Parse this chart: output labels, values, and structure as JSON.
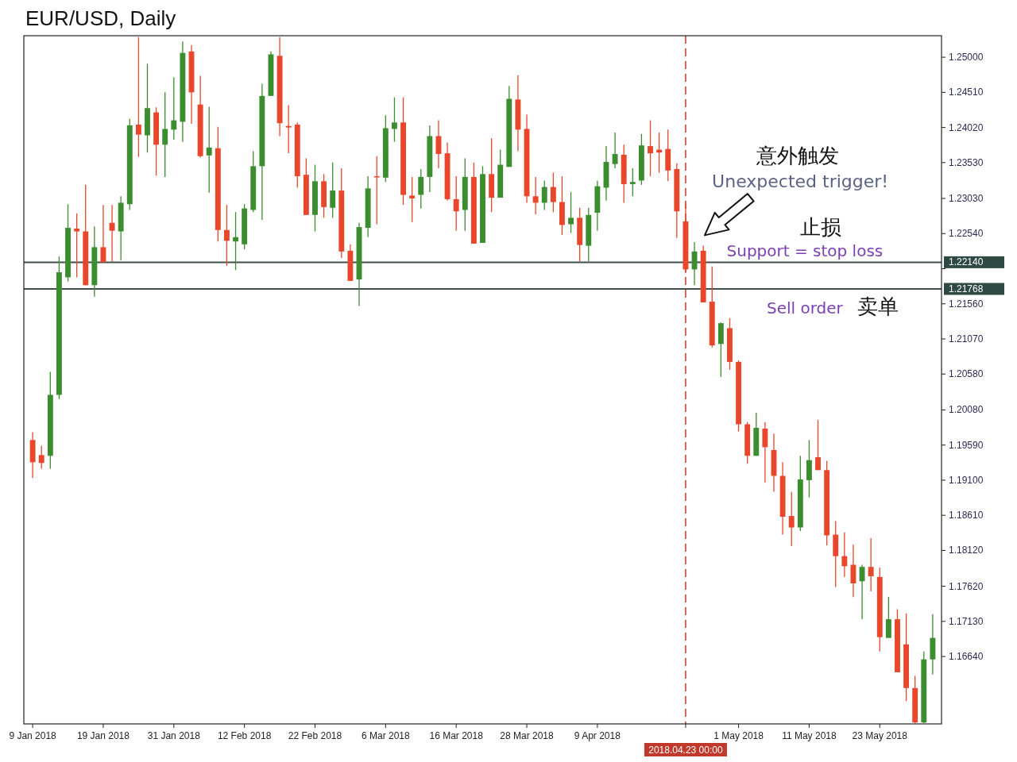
{
  "chart_data": {
    "type": "candlestick",
    "title": "EUR/USD, Daily",
    "categories": [
      "9 Jan 2018",
      null,
      null,
      null,
      null,
      null,
      null,
      null,
      "19 Jan 2018",
      null,
      null,
      null,
      null,
      null,
      null,
      null,
      "31 Jan 2018",
      null,
      null,
      null,
      null,
      null,
      null,
      null,
      "12 Feb 2018",
      null,
      null,
      null,
      null,
      null,
      null,
      null,
      "22 Feb 2018",
      null,
      null,
      null,
      null,
      null,
      null,
      null,
      "6 Mar 2018",
      null,
      null,
      null,
      null,
      null,
      null,
      null,
      "16 Mar 2018",
      null,
      null,
      null,
      null,
      null,
      null,
      null,
      "28 Mar 2018",
      null,
      null,
      null,
      null,
      null,
      null,
      null,
      "9 Apr 2018",
      null,
      null,
      null,
      null,
      null,
      null,
      null,
      null,
      null,
      "2018.04.23 00:00",
      null,
      null,
      null,
      null,
      null,
      "1 May 2018",
      null,
      null,
      null,
      null,
      null,
      null,
      null,
      "11 May 2018",
      null,
      null,
      null,
      null,
      null,
      null,
      null,
      "23 May 2018",
      null,
      null,
      null,
      null,
      null,
      null
    ],
    "ohlc": [
      [
        1.1966,
        1.1977,
        1.1913,
        1.1935
      ],
      [
        1.1945,
        1.1958,
        1.1926,
        1.1934
      ],
      [
        1.1944,
        1.2061,
        1.1926,
        1.2029
      ],
      [
        1.2029,
        1.2222,
        1.2023,
        1.22
      ],
      [
        1.2193,
        1.2295,
        1.2187,
        1.2262
      ],
      [
        1.2261,
        1.2282,
        1.2193,
        1.2257
      ],
      [
        1.2257,
        1.2322,
        1.2182,
        1.2182
      ],
      [
        1.2182,
        1.2264,
        1.2166,
        1.2235
      ],
      [
        1.2235,
        1.2294,
        1.2214,
        1.2214
      ],
      [
        1.2269,
        1.2294,
        1.2215,
        1.2258
      ],
      [
        1.2257,
        1.2306,
        1.2217,
        1.2297
      ],
      [
        1.2295,
        1.2414,
        1.2287,
        1.2405
      ],
      [
        1.2406,
        1.2528,
        1.2361,
        1.2392
      ],
      [
        1.2391,
        1.2491,
        1.2367,
        1.2429
      ],
      [
        1.2423,
        1.243,
        1.2335,
        1.2378
      ],
      [
        1.2378,
        1.2451,
        1.2333,
        1.24
      ],
      [
        1.2399,
        1.2472,
        1.2385,
        1.2412
      ],
      [
        1.241,
        1.2522,
        1.2382,
        1.2506
      ],
      [
        1.2508,
        1.2517,
        1.2407,
        1.2451
      ],
      [
        1.2434,
        1.2474,
        1.236,
        1.2362
      ],
      [
        1.2363,
        1.2431,
        1.2311,
        1.2374
      ],
      [
        1.2373,
        1.2403,
        1.2243,
        1.2259
      ],
      [
        1.2259,
        1.2294,
        1.2209,
        1.2244
      ],
      [
        1.2243,
        1.2284,
        1.2203,
        1.2249
      ],
      [
        1.2239,
        1.2295,
        1.2232,
        1.2289
      ],
      [
        1.2287,
        1.2369,
        1.2284,
        1.2348
      ],
      [
        1.2348,
        1.2463,
        1.2273,
        1.2446
      ],
      [
        1.2446,
        1.2508,
        1.2446,
        1.2504
      ],
      [
        1.2502,
        1.2528,
        1.239,
        1.2408
      ],
      [
        1.2404,
        1.2433,
        1.2366,
        1.2402
      ],
      [
        1.2406,
        1.2409,
        1.2318,
        1.2334
      ],
      [
        1.2336,
        1.2359,
        1.228,
        1.228
      ],
      [
        1.228,
        1.235,
        1.2257,
        1.2327
      ],
      [
        1.2327,
        1.2337,
        1.2276,
        1.2291
      ],
      [
        1.229,
        1.2353,
        1.2276,
        1.2314
      ],
      [
        1.2314,
        1.2345,
        1.222,
        1.2229
      ],
      [
        1.223,
        1.2239,
        1.2188,
        1.2188
      ],
      [
        1.219,
        1.2269,
        1.2153,
        1.2263
      ],
      [
        1.2262,
        1.2334,
        1.2249,
        1.2317
      ],
      [
        1.2334,
        1.2362,
        1.2267,
        1.2333
      ],
      [
        1.2332,
        1.2419,
        1.2326,
        1.2401
      ],
      [
        1.24,
        1.2444,
        1.2382,
        1.2409
      ],
      [
        1.2409,
        1.2444,
        1.2294,
        1.2308
      ],
      [
        1.2307,
        1.2333,
        1.227,
        1.2303
      ],
      [
        1.2308,
        1.2344,
        1.2289,
        1.2333
      ],
      [
        1.2333,
        1.2405,
        1.2312,
        1.239
      ],
      [
        1.239,
        1.2412,
        1.2345,
        1.2365
      ],
      [
        1.2366,
        1.2381,
        1.23,
        1.2302
      ],
      [
        1.2302,
        1.2334,
        1.2258,
        1.2285
      ],
      [
        1.2287,
        1.2359,
        1.2258,
        1.2333
      ],
      [
        1.2333,
        1.2353,
        1.224,
        1.224
      ],
      [
        1.2241,
        1.2348,
        1.2241,
        1.2337
      ],
      [
        1.2337,
        1.2387,
        1.2284,
        1.2304
      ],
      [
        1.2304,
        1.2371,
        1.2304,
        1.235
      ],
      [
        1.2347,
        1.246,
        1.2347,
        1.2442
      ],
      [
        1.2441,
        1.2475,
        1.2369,
        1.2399
      ],
      [
        1.24,
        1.242,
        1.2297,
        1.2306
      ],
      [
        1.2306,
        1.2333,
        1.2281,
        1.2297
      ],
      [
        1.2297,
        1.2328,
        1.2287,
        1.2319
      ],
      [
        1.2319,
        1.2339,
        1.2284,
        1.2298
      ],
      [
        1.2298,
        1.2334,
        1.2252,
        1.2266
      ],
      [
        1.2267,
        1.2312,
        1.2255,
        1.2276
      ],
      [
        1.2276,
        1.229,
        1.2215,
        1.2238
      ],
      [
        1.2237,
        1.229,
        1.2215,
        1.228
      ],
      [
        1.2283,
        1.2328,
        1.2258,
        1.232
      ],
      [
        1.2318,
        1.2376,
        1.23,
        1.2354
      ],
      [
        1.2351,
        1.2395,
        1.2345,
        1.2365
      ],
      [
        1.2364,
        1.2378,
        1.2297,
        1.2323
      ],
      [
        1.2323,
        1.2345,
        1.2306,
        1.2326
      ],
      [
        1.2328,
        1.2393,
        1.2322,
        1.2377
      ],
      [
        1.2376,
        1.2412,
        1.2334,
        1.2366
      ],
      [
        1.2371,
        1.2395,
        1.2339,
        1.2367
      ],
      [
        1.2372,
        1.2399,
        1.2327,
        1.2342
      ],
      [
        1.2344,
        1.2352,
        1.2248,
        1.2285
      ],
      [
        1.2271,
        1.2296,
        1.2199,
        1.2204
      ],
      [
        1.2204,
        1.2242,
        1.2182,
        1.2229
      ],
      [
        1.223,
        1.2237,
        1.2158,
        1.2158
      ],
      [
        1.2159,
        1.2208,
        1.2095,
        1.2098
      ],
      [
        1.21,
        1.213,
        1.2054,
        1.2129
      ],
      [
        1.2122,
        1.2136,
        1.2064,
        1.2075
      ],
      [
        1.2075,
        1.2077,
        1.1978,
        1.1988
      ],
      [
        1.1988,
        1.1991,
        1.1933,
        1.1944
      ],
      [
        1.1944,
        1.2004,
        1.1944,
        1.1983
      ],
      [
        1.1982,
        1.1991,
        1.1907,
        1.1956
      ],
      [
        1.1952,
        1.1975,
        1.1894,
        1.1916
      ],
      [
        1.1916,
        1.1935,
        1.1834,
        1.1859
      ],
      [
        1.186,
        1.1894,
        1.1818,
        1.1844
      ],
      [
        1.1844,
        1.1944,
        1.1839,
        1.1911
      ],
      [
        1.191,
        1.1966,
        1.1886,
        1.1938
      ],
      [
        1.1942,
        1.1994,
        1.1924,
        1.1924
      ],
      [
        1.1924,
        1.1937,
        1.1819,
        1.1833
      ],
      [
        1.1834,
        1.1853,
        1.1761,
        1.1804
      ],
      [
        1.1804,
        1.1837,
        1.1775,
        1.179
      ],
      [
        1.1792,
        1.182,
        1.1747,
        1.1766
      ],
      [
        1.1769,
        1.1792,
        1.1716,
        1.1789
      ],
      [
        1.1789,
        1.1829,
        1.1755,
        1.1776
      ],
      [
        1.1775,
        1.1788,
        1.1671,
        1.1691
      ],
      [
        1.169,
        1.1747,
        1.169,
        1.1716
      ],
      [
        1.1716,
        1.173,
        1.1642,
        1.1642
      ],
      [
        1.1681,
        1.1724,
        1.1602,
        1.162
      ],
      [
        1.162,
        1.1637,
        1.1571,
        1.1572
      ],
      [
        1.1572,
        1.1671,
        1.1571,
        1.166
      ],
      [
        1.166,
        1.1723,
        1.1639,
        1.169
      ]
    ],
    "colors": [
      "#e8472b",
      "#e8472b",
      "#3c8d2f",
      "#3c8d2f",
      "#3c8d2f",
      "#e8472b",
      "#e8472b",
      "#3c8d2f",
      "#e8472b",
      "#e8472b",
      "#3c8d2f",
      "#3c8d2f",
      "#e8472b",
      "#3c8d2f",
      "#e8472b",
      "#3c8d2f",
      "#3c8d2f",
      "#3c8d2f",
      "#e8472b",
      "#e8472b",
      "#3c8d2f",
      "#e8472b",
      "#e8472b",
      "#3c8d2f",
      "#3c8d2f",
      "#3c8d2f",
      "#3c8d2f",
      "#3c8d2f",
      "#e8472b",
      "#e8472b",
      "#e8472b",
      "#e8472b",
      "#3c8d2f",
      "#e8472b",
      "#3c8d2f",
      "#e8472b",
      "#e8472b",
      "#3c8d2f",
      "#3c8d2f",
      "#e8472b",
      "#3c8d2f",
      "#3c8d2f",
      "#e8472b",
      "#e8472b",
      "#3c8d2f",
      "#3c8d2f",
      "#e8472b",
      "#e8472b",
      "#e8472b",
      "#3c8d2f",
      "#e8472b",
      "#3c8d2f",
      "#e8472b",
      "#3c8d2f",
      "#3c8d2f",
      "#e8472b",
      "#e8472b",
      "#e8472b",
      "#3c8d2f",
      "#e8472b",
      "#e8472b",
      "#3c8d2f",
      "#e8472b",
      "#3c8d2f",
      "#3c8d2f",
      "#3c8d2f",
      "#3c8d2f",
      "#e8472b",
      "#3c8d2f",
      "#3c8d2f",
      "#e8472b",
      "#e8472b",
      "#e8472b",
      "#e8472b",
      "#e8472b",
      "#3c8d2f",
      "#e8472b",
      "#e8472b",
      "#3c8d2f",
      "#e8472b",
      "#e8472b",
      "#e8472b",
      "#3c8d2f",
      "#e8472b",
      "#e8472b",
      "#e8472b",
      "#e8472b",
      "#3c8d2f",
      "#3c8d2f",
      "#e8472b",
      "#e8472b",
      "#e8472b",
      "#e8472b",
      "#e8472b",
      "#3c8d2f",
      "#e8472b",
      "#e8472b",
      "#3c8d2f",
      "#e8472b",
      "#e8472b",
      "#e8472b",
      "#3c8d2f",
      "#3c8d2f"
    ],
    "ylim": [
      1.157,
      1.253
    ],
    "yticks": [
      {
        "value": 1.25,
        "label": "1.25000"
      },
      {
        "value": 1.2451,
        "label": "1.24510"
      },
      {
        "value": 1.2402,
        "label": "1.24020"
      },
      {
        "value": 1.2353,
        "label": "1.23530"
      },
      {
        "value": 1.2303,
        "label": "1.23030"
      },
      {
        "value": 1.2254,
        "label": "1.22540"
      },
      {
        "value": 1.2205,
        "label": null
      },
      {
        "value": 1.2156,
        "label": "1.21560"
      },
      {
        "value": 1.2107,
        "label": "1.21070"
      },
      {
        "value": 1.2058,
        "label": "1.20580"
      },
      {
        "value": 1.2008,
        "label": "1.20080"
      },
      {
        "value": 1.1959,
        "label": "1.19590"
      },
      {
        "value": 1.191,
        "label": "1.19100"
      },
      {
        "value": 1.1861,
        "label": "1.18610"
      },
      {
        "value": 1.1812,
        "label": "1.18120"
      },
      {
        "value": 1.1762,
        "label": "1.17620"
      },
      {
        "value": 1.1713,
        "label": "1.17130"
      },
      {
        "value": 1.1664,
        "label": "1.16640"
      }
    ],
    "ref_lines": [
      {
        "axis": "y",
        "value": 1.2214,
        "label": "1.22140",
        "color": "#3f4f4a",
        "line_style": "solid"
      },
      {
        "axis": "y",
        "value": 1.21768,
        "label": "1.21768",
        "color": "#3f4f4a",
        "line_style": "solid"
      },
      {
        "axis": "x",
        "value": "2018.04.23 00:00",
        "color": "#c0392b",
        "line_style": "dashed"
      }
    ],
    "annotations": [
      "意外触发",
      "Unexpected trigger!",
      "止损",
      "Support = stop loss",
      "Sell order",
      "卖单"
    ]
  }
}
